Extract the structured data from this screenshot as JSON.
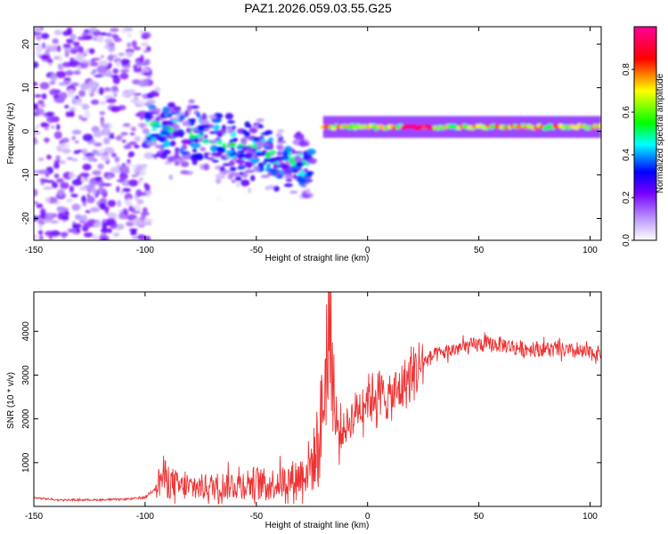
{
  "title": "PAZ1.2026.059.03.55.G25",
  "chart_data": [
    {
      "type": "heatmap",
      "xlabel": "Height of straight line (km)",
      "ylabel": "Frequency (Hz)",
      "xlim": [
        -150,
        105
      ],
      "ylim": [
        -25,
        24
      ],
      "x_ticks": [
        -150,
        -100,
        -50,
        0,
        50,
        100
      ],
      "y_ticks": [
        20,
        10,
        0,
        -10,
        -20
      ],
      "colorbar": {
        "label": "Normalized spectral amplitude",
        "range": [
          0,
          1
        ],
        "ticks": [
          "0.0",
          "0.2",
          "0.4",
          "0.6",
          "0.8"
        ],
        "colors": [
          "#ffffff",
          "#8800ff",
          "#0000ff",
          "#00ffff",
          "#00ff00",
          "#ffff00",
          "#ff0000",
          "#ff00aa"
        ]
      },
      "features": [
        {
          "name": "scattered noise",
          "x_range": [
            -150,
            -100
          ],
          "freq_range": [
            -25,
            24
          ],
          "amplitude": 0.1
        },
        {
          "name": "descending diffuse band",
          "x_range": [
            -100,
            -25
          ],
          "freq_start": 2,
          "freq_end": -8,
          "amplitude": 0.3
        },
        {
          "name": "strong carrier line",
          "x_range": [
            -20,
            105
          ],
          "freq": 1,
          "amplitude": 0.6
        }
      ]
    },
    {
      "type": "line",
      "xlabel": "Height of straight line (km)",
      "ylabel": "SNR (10 * v/v)",
      "xlim": [
        -150,
        105
      ],
      "ylim": [
        0,
        4900
      ],
      "x_ticks": [
        -150,
        -100,
        -50,
        0,
        50,
        100
      ],
      "y_ticks": [
        1000,
        2000,
        3000,
        4000
      ],
      "color": "#ee3333",
      "series": [
        {
          "name": "SNR",
          "x": [
            -150,
            -140,
            -130,
            -120,
            -110,
            -100,
            -95,
            -92,
            -90,
            -85,
            -80,
            -70,
            -60,
            -50,
            -45,
            -40,
            -35,
            -30,
            -25,
            -22,
            -20,
            -18,
            -17,
            -16,
            -15,
            -13,
            -10,
            -5,
            0,
            5,
            10,
            15,
            20,
            25,
            30,
            40,
            50,
            60,
            70,
            80,
            90,
            100,
            105
          ],
          "y": [
            200,
            150,
            150,
            150,
            160,
            200,
            450,
            700,
            600,
            450,
            420,
            450,
            500,
            550,
            500,
            550,
            600,
            700,
            1000,
            1300,
            2300,
            3500,
            4800,
            3500,
            2200,
            1600,
            1800,
            2200,
            2500,
            2600,
            2450,
            2700,
            3000,
            3300,
            3450,
            3600,
            3700,
            3700,
            3600,
            3600,
            3550,
            3500,
            3500
          ]
        }
      ]
    }
  ]
}
